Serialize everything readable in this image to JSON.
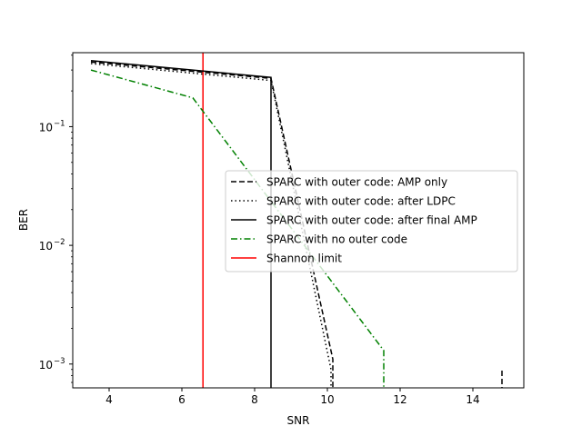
{
  "chart_data": {
    "type": "line",
    "title": "",
    "xlabel": "SNR",
    "ylabel": "BER",
    "xlim": [
      3.0,
      15.4
    ],
    "ylim": [
      0.00063,
      0.42
    ],
    "yscale": "log",
    "grid": false,
    "legend_position": "center-right",
    "x_ticks": [
      4,
      6,
      8,
      10,
      12,
      14
    ],
    "x_tick_labels": [
      "4",
      "6",
      "8",
      "10",
      "12",
      "14"
    ],
    "y_ticks": [
      0.001,
      0.01,
      0.1
    ],
    "y_tick_labels": [
      {
        "base": "10",
        "exp": "−3"
      },
      {
        "base": "10",
        "exp": "−2"
      },
      {
        "base": "10",
        "exp": "−1"
      }
    ],
    "series": [
      {
        "name": "SPARC with outer code: AMP only",
        "color": "#000000",
        "style": "dashed",
        "x": [
          3.5,
          8.45,
          10.15,
          10.15
        ],
        "y": [
          0.35,
          0.255,
          0.0011,
          0.0006
        ]
      },
      {
        "name": "SPARC with outer code: AMP only",
        "color": "#000000",
        "style": "dashed",
        "legend": false,
        "x": [
          14.8,
          14.8
        ],
        "y": [
          0.00088,
          0.0006
        ]
      },
      {
        "name": "SPARC with outer code: after LDPC",
        "color": "#000000",
        "style": "dotted",
        "x": [
          3.5,
          8.45,
          10.1,
          10.1
        ],
        "y": [
          0.34,
          0.245,
          0.0009,
          0.0006
        ]
      },
      {
        "name": "SPARC with outer code: after final AMP",
        "color": "#000000",
        "style": "solid",
        "x": [
          3.5,
          8.45,
          8.45
        ],
        "y": [
          0.36,
          0.26,
          0.0006
        ]
      },
      {
        "name": "SPARC with no outer code",
        "color": "#008000",
        "style": "dashdot",
        "x": [
          3.5,
          6.3,
          11.55,
          11.55
        ],
        "y": [
          0.3,
          0.175,
          0.0013,
          0.0006
        ]
      }
    ],
    "vlines": [
      {
        "name": "Shannon limit",
        "color": "#ff0000",
        "style": "solid",
        "x": 6.58
      }
    ],
    "legend": [
      {
        "label": "SPARC with outer code: AMP only",
        "color": "#000000",
        "style": "dashed"
      },
      {
        "label": "SPARC with outer code: after LDPC",
        "color": "#000000",
        "style": "dotted"
      },
      {
        "label": "SPARC with outer code: after final AMP",
        "color": "#000000",
        "style": "solid"
      },
      {
        "label": "SPARC with no outer code",
        "color": "#008000",
        "style": "dashdot"
      },
      {
        "label": "Shannon limit",
        "color": "#ff0000",
        "style": "solid"
      }
    ]
  }
}
